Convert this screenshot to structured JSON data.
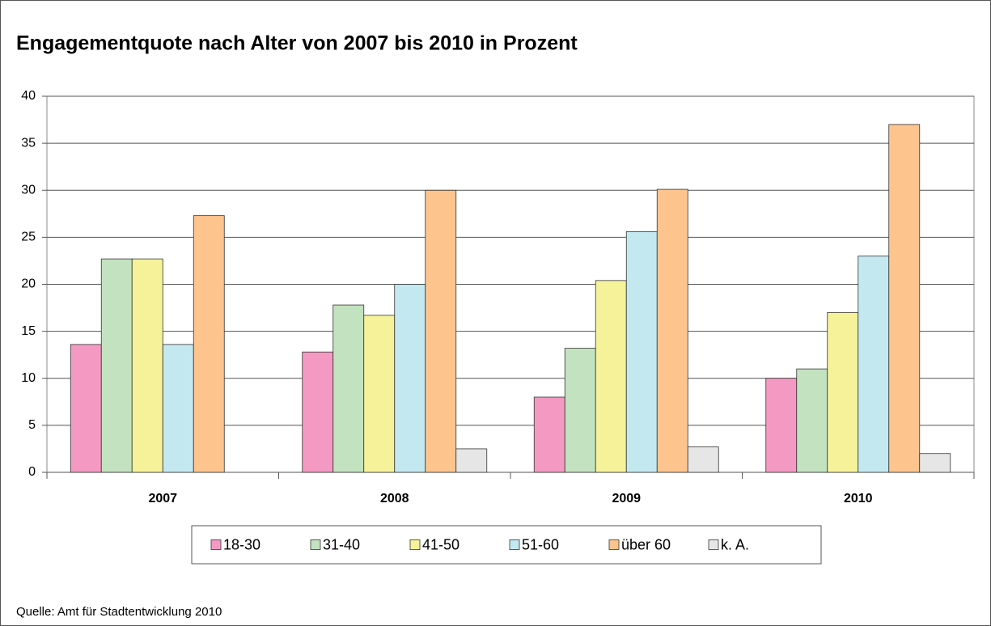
{
  "chart_data": {
    "type": "bar",
    "title": "Engagementquote nach Alter von 2007 bis 2010 in Prozent",
    "source": "Quelle: Amt für Stadtentwicklung 2010",
    "categories": [
      "2007",
      "2008",
      "2009",
      "2010"
    ],
    "series": [
      {
        "name": "18-30",
        "color": "#f49ac2",
        "values": [
          13.6,
          12.8,
          8.0,
          10.0
        ]
      },
      {
        "name": "31-40",
        "color": "#c3e2c0",
        "values": [
          22.7,
          17.8,
          13.2,
          11.0
        ]
      },
      {
        "name": "41-50",
        "color": "#f5f29a",
        "values": [
          22.7,
          16.7,
          20.4,
          17.0
        ]
      },
      {
        "name": "51-60",
        "color": "#c4e8f0",
        "values": [
          13.6,
          20.0,
          25.6,
          23.0
        ]
      },
      {
        "name": "über 60",
        "color": "#fdc48e",
        "values": [
          27.3,
          30.0,
          30.1,
          37.0
        ]
      },
      {
        "name": "k. A.",
        "color": "#e6e6e6",
        "values": [
          null,
          2.5,
          2.7,
          2.0
        ]
      }
    ],
    "ylim": [
      0,
      40
    ],
    "yticks": [
      0,
      5,
      10,
      15,
      20,
      25,
      30,
      35,
      40
    ],
    "grid": true,
    "legend": "bottom"
  }
}
